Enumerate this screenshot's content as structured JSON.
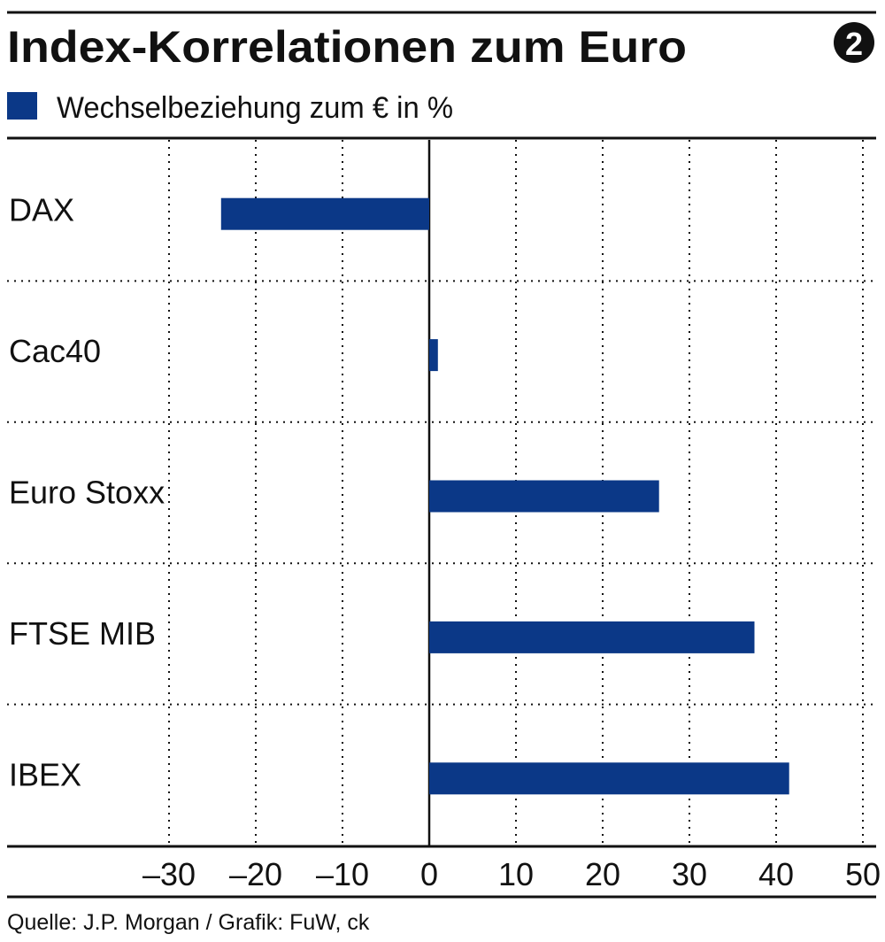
{
  "header": {
    "title": "Index-Korrelationen zum Euro",
    "badge": "2"
  },
  "legend": {
    "label": "Wechselbeziehung zum € in %"
  },
  "source": "Quelle: J.P. Morgan / Grafik: FuW, ck",
  "colors": {
    "bar": "#0b3887",
    "text": "#111111",
    "grid": "#111111"
  },
  "chart_data": {
    "type": "bar",
    "orientation": "horizontal",
    "title": "Index-Korrelationen zum Euro",
    "series": [
      {
        "name": "Wechselbeziehung zum € in %",
        "values": [
          -24,
          1,
          26.5,
          37.5,
          41.5
        ]
      }
    ],
    "categories": [
      "DAX",
      "Cac40",
      "Euro Stoxx",
      "FTSE MIB",
      "IBEX"
    ],
    "xlim": [
      -30,
      50
    ],
    "ticks": [
      -30,
      -20,
      -10,
      0,
      10,
      20,
      30,
      40,
      50
    ],
    "tick_labels": [
      "–30",
      "–20",
      "–10",
      "0",
      "10",
      "20",
      "30",
      "40",
      "50"
    ],
    "grid": true,
    "legend_position": "top-left",
    "xlabel": "",
    "ylabel": ""
  }
}
